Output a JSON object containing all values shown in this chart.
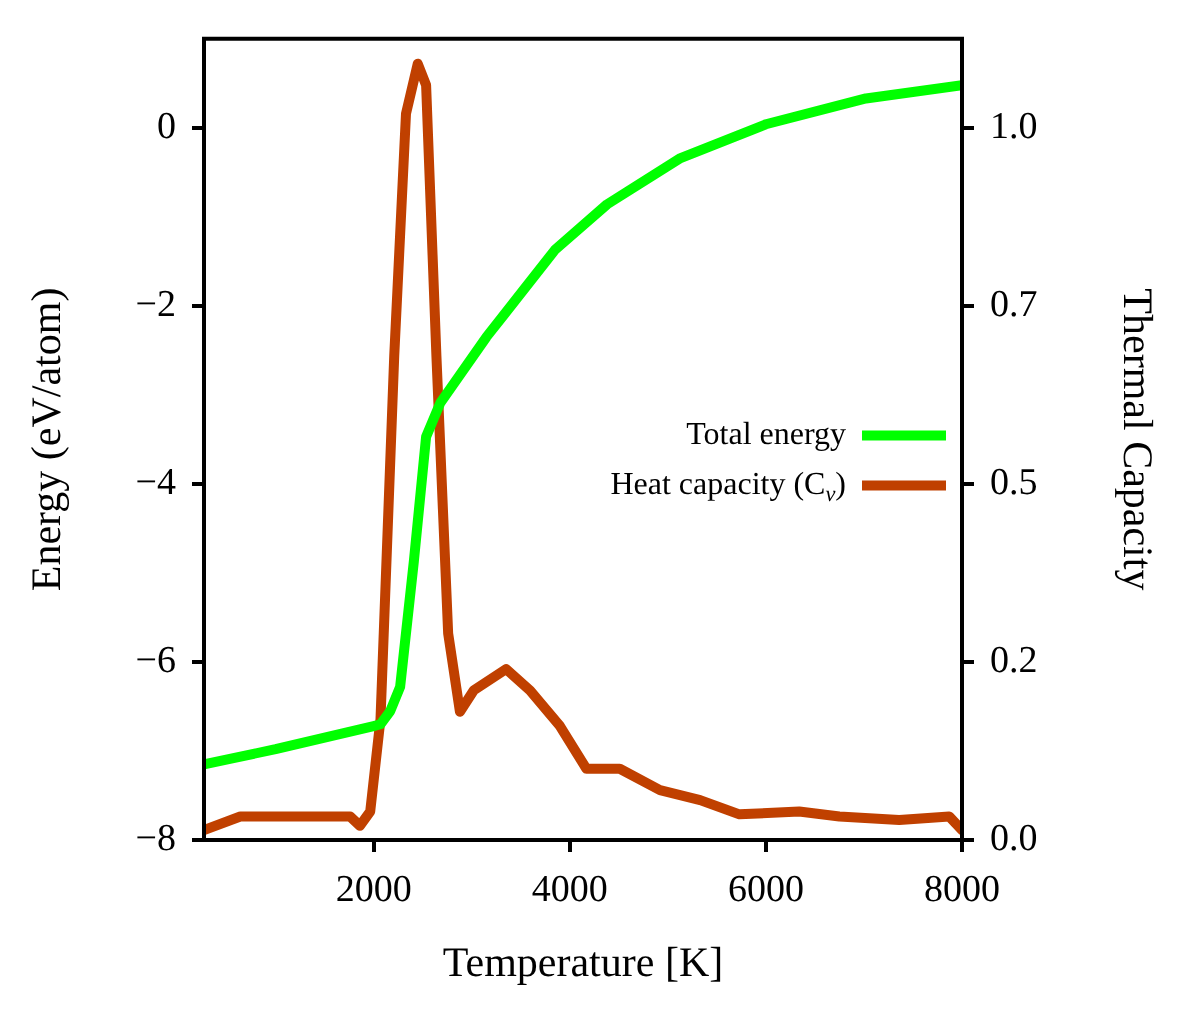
{
  "chart_data": {
    "type": "line",
    "xlabel": "Temperature [K]",
    "ylabel": "Energy (eV/atom)",
    "y2label": "Thermal Capacity",
    "xlim": [
      270,
      8000
    ],
    "xticks": [
      2000,
      4000,
      6000,
      8000
    ],
    "ylim": [
      -8,
      1.0
    ],
    "yticks": [
      -8,
      -6,
      -4,
      -2,
      0
    ],
    "y2lim": [
      0,
      1.125
    ],
    "y2ticks": [
      {
        "value": 0,
        "label": "0.0"
      },
      {
        "value": 0.25,
        "label": "0.2"
      },
      {
        "value": 0.5,
        "label": "0.5"
      },
      {
        "value": 0.75,
        "label": "0.7"
      },
      {
        "value": 1.0,
        "label": "1.0"
      }
    ],
    "legend": "right",
    "grid": false,
    "marker": "none",
    "series": [
      {
        "name": "Total energy",
        "color": "#00ff00",
        "x": [
          270,
          1000,
          2000,
          2070,
          2170,
          2270,
          2410,
          2535,
          2680,
          3150,
          3850,
          4380,
          5130,
          6000,
          7020,
          8000
        ],
        "values": [
          -7.15,
          -6.98,
          -6.72,
          -6.7,
          -6.55,
          -6.28,
          -4.87,
          -3.47,
          -3.09,
          -2.35,
          -1.37,
          -0.86,
          -0.34,
          0.04,
          0.33,
          0.48
        ]
      },
      {
        "name": "Heat capacity (C$_{v}$)",
        "color": "#c04000",
        "axis": "y2",
        "x": [
          270,
          640,
          1760,
          1860,
          1965,
          2070,
          2210,
          2330,
          2450,
          2535,
          2640,
          2760,
          2880,
          3020,
          3350,
          3595,
          3900,
          4170,
          4510,
          4920,
          5330,
          5730,
          6340,
          6750,
          7360,
          7870,
          8000
        ],
        "values": [
          0.014,
          0.033,
          0.033,
          0.02,
          0.04,
          0.17,
          0.68,
          1.02,
          1.09,
          1.06,
          0.68,
          0.29,
          0.18,
          0.21,
          0.24,
          0.21,
          0.16,
          0.1,
          0.1,
          0.07,
          0.056,
          0.036,
          0.04,
          0.033,
          0.028,
          0.033,
          0.014
        ]
      }
    ]
  }
}
